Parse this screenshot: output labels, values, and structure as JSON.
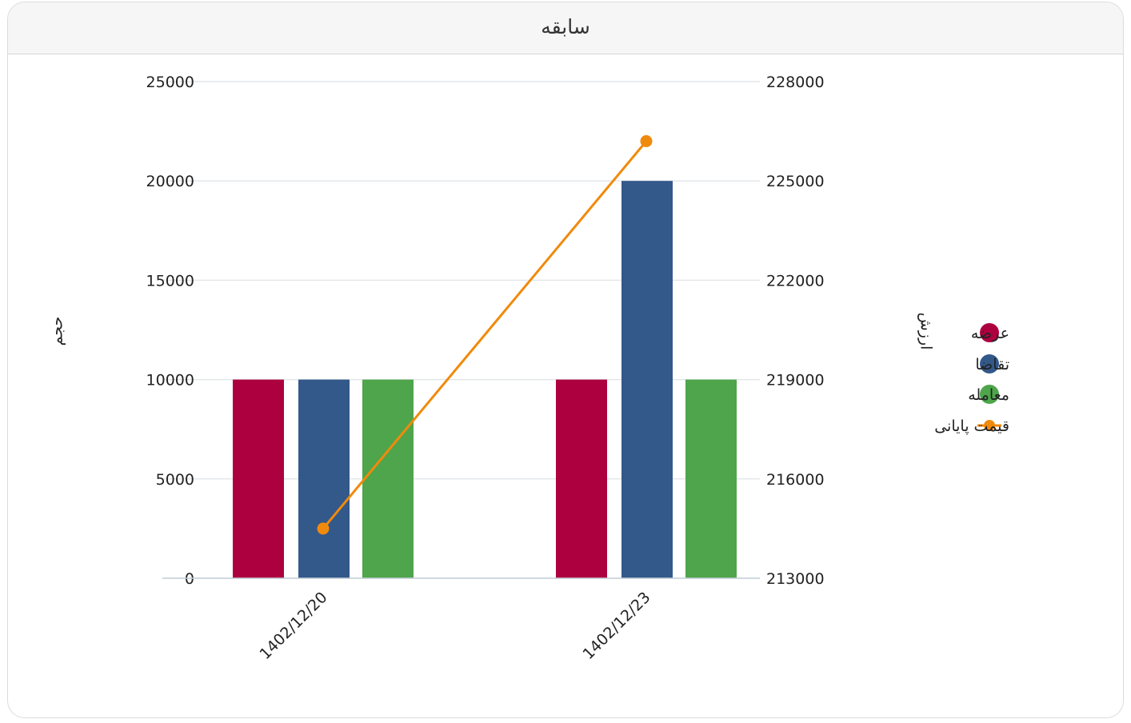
{
  "panel": {
    "title": "سابقه"
  },
  "chart_data": {
    "type": "bar",
    "title": "",
    "categories": [
      "1402/12/20",
      "1402/12/23"
    ],
    "y_left": {
      "label": "حجم",
      "ylim": [
        0,
        25000
      ],
      "ticks": [
        0,
        5000,
        10000,
        15000,
        20000,
        25000
      ]
    },
    "y_right": {
      "label": "ارزش",
      "ylim": [
        213000,
        228000
      ],
      "ticks": [
        213000,
        216000,
        219000,
        222000,
        225000,
        228000
      ]
    },
    "series": [
      {
        "name": "عرضه",
        "type": "bar",
        "axis": "left",
        "color": "#ad003f",
        "values": [
          10000,
          10000
        ]
      },
      {
        "name": "تقاضا",
        "type": "bar",
        "axis": "left",
        "color": "#33588a",
        "values": [
          10000,
          20000
        ]
      },
      {
        "name": "معامله",
        "type": "bar",
        "axis": "left",
        "color": "#4ea54b",
        "values": [
          10000,
          10000
        ]
      },
      {
        "name": "قیمت پایانی",
        "type": "line",
        "axis": "right",
        "color": "#f08a0c",
        "values": [
          214500,
          226200
        ]
      }
    ],
    "grid": true,
    "legend_position": "right"
  }
}
